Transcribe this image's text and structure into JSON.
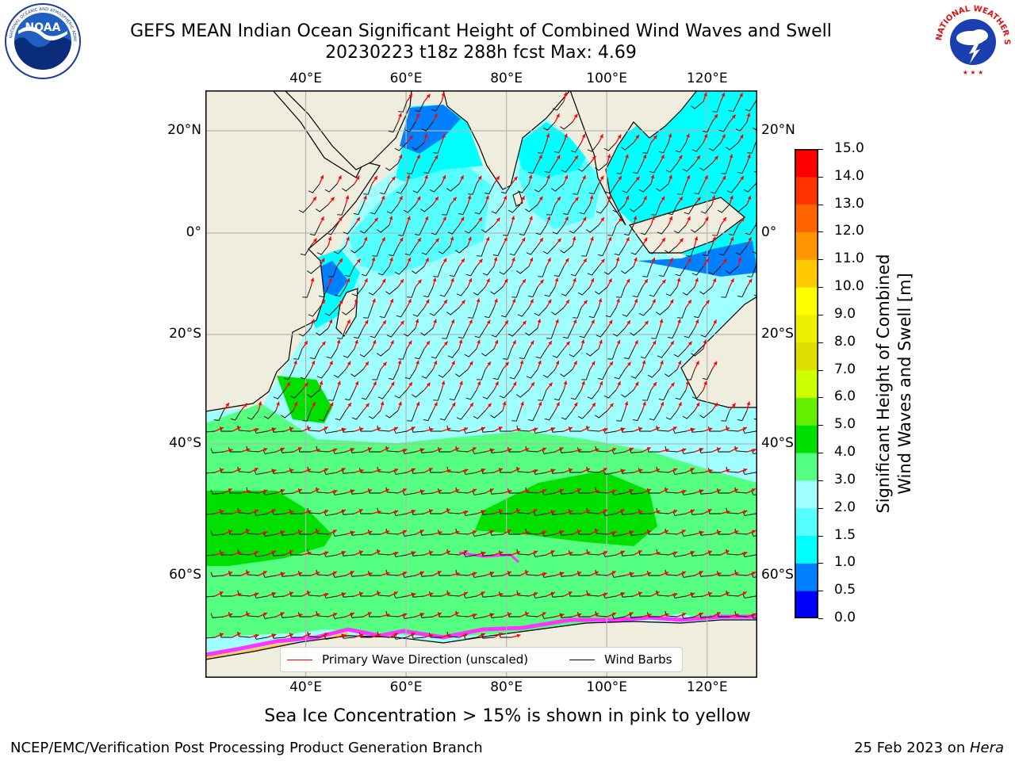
{
  "title": {
    "line1": "GEFS MEAN Indian Ocean Significant Height of Combined Wind Waves and Swell",
    "line2": "20230223 t18z 288h fcst   Max: 4.69"
  },
  "logos": {
    "noaa": {
      "icon": "noaa-logo",
      "text": "NOAA",
      "ring_text": "NATIONAL OCEANIC AND ATMOSPHERIC ADMINISTRATION · U.S. DEPARTMENT OF COMMERCE"
    },
    "nws": {
      "icon": "nws-logo",
      "ring_text": "NATIONAL WEATHER SERVICE"
    }
  },
  "map": {
    "longitude_ticks": [
      "40°E",
      "60°E",
      "80°E",
      "100°E",
      "120°E"
    ],
    "longitude_values": [
      40,
      60,
      80,
      100,
      120
    ],
    "latitude_ticks_left": [
      "20°N",
      "0°",
      "20°S",
      "40°S",
      "60°S"
    ],
    "latitude_ticks_right": [
      "20°N",
      "0°",
      "20°S",
      "40°S",
      "60°S"
    ],
    "latitude_values": [
      20,
      0,
      -20,
      -40,
      -60
    ],
    "extent": {
      "lon_min": 20,
      "lon_max": 130,
      "lat_min": -75,
      "lat_max": 27
    },
    "colors": {
      "land": "#efeddd",
      "coast": "#000000",
      "grid": "#b4b4b4",
      "wave_arrow": "#ff0000",
      "wind_barb": "#000000"
    },
    "regions_description": "Southern Ocean band of 3-5 m waves near 40-65°S; 2-3 m across central Indian Ocean; 0.5-1.5 m in Arabian Sea, Bay of Bengal and Indonesian seas; sea ice at Antarctic margin."
  },
  "colorbar": {
    "label_line1": "Significant Height of Combined",
    "label_line2": "Wind Waves and Swell [m]",
    "ticks": [
      "15.0",
      "14.0",
      "13.0",
      "12.0",
      "11.0",
      "10.0",
      "9.0",
      "8.0",
      "7.0",
      "6.0",
      "5.0",
      "4.0",
      "3.0",
      "2.0",
      "1.5",
      "1.0",
      "0.5",
      "0.0"
    ],
    "bins": [
      {
        "from": 0.0,
        "to": 0.5,
        "color": "#0000ff"
      },
      {
        "from": 0.5,
        "to": 1.0,
        "color": "#0080ff"
      },
      {
        "from": 1.0,
        "to": 1.5,
        "color": "#00ffff"
      },
      {
        "from": 1.5,
        "to": 2.0,
        "color": "#55ffff"
      },
      {
        "from": 2.0,
        "to": 3.0,
        "color": "#a0ffff"
      },
      {
        "from": 3.0,
        "to": 4.0,
        "color": "#55ff80"
      },
      {
        "from": 4.0,
        "to": 5.0,
        "color": "#00e000"
      },
      {
        "from": 5.0,
        "to": 6.0,
        "color": "#66ee00"
      },
      {
        "from": 6.0,
        "to": 7.0,
        "color": "#ccff00"
      },
      {
        "from": 7.0,
        "to": 8.0,
        "color": "#dddd00"
      },
      {
        "from": 8.0,
        "to": 9.0,
        "color": "#eeee00"
      },
      {
        "from": 9.0,
        "to": 10.0,
        "color": "#ffff00"
      },
      {
        "from": 10.0,
        "to": 11.0,
        "color": "#ffc800"
      },
      {
        "from": 11.0,
        "to": 12.0,
        "color": "#ff9600"
      },
      {
        "from": 12.0,
        "to": 13.0,
        "color": "#ff6400"
      },
      {
        "from": 13.0,
        "to": 14.0,
        "color": "#ff3200"
      },
      {
        "from": 14.0,
        "to": 15.0,
        "color": "#ff0000"
      }
    ]
  },
  "legend": {
    "wave_direction": "Primary Wave Direction (unscaled)",
    "wind_barbs": "Wind Barbs"
  },
  "ice_note": "Sea Ice Concentration > 15% is shown in pink to yellow",
  "footer": {
    "left": "NCEP/EMC/Verification Post Processing Product Generation Branch",
    "right_date": "25 Feb 2023 on ",
    "right_host": "Hera"
  }
}
